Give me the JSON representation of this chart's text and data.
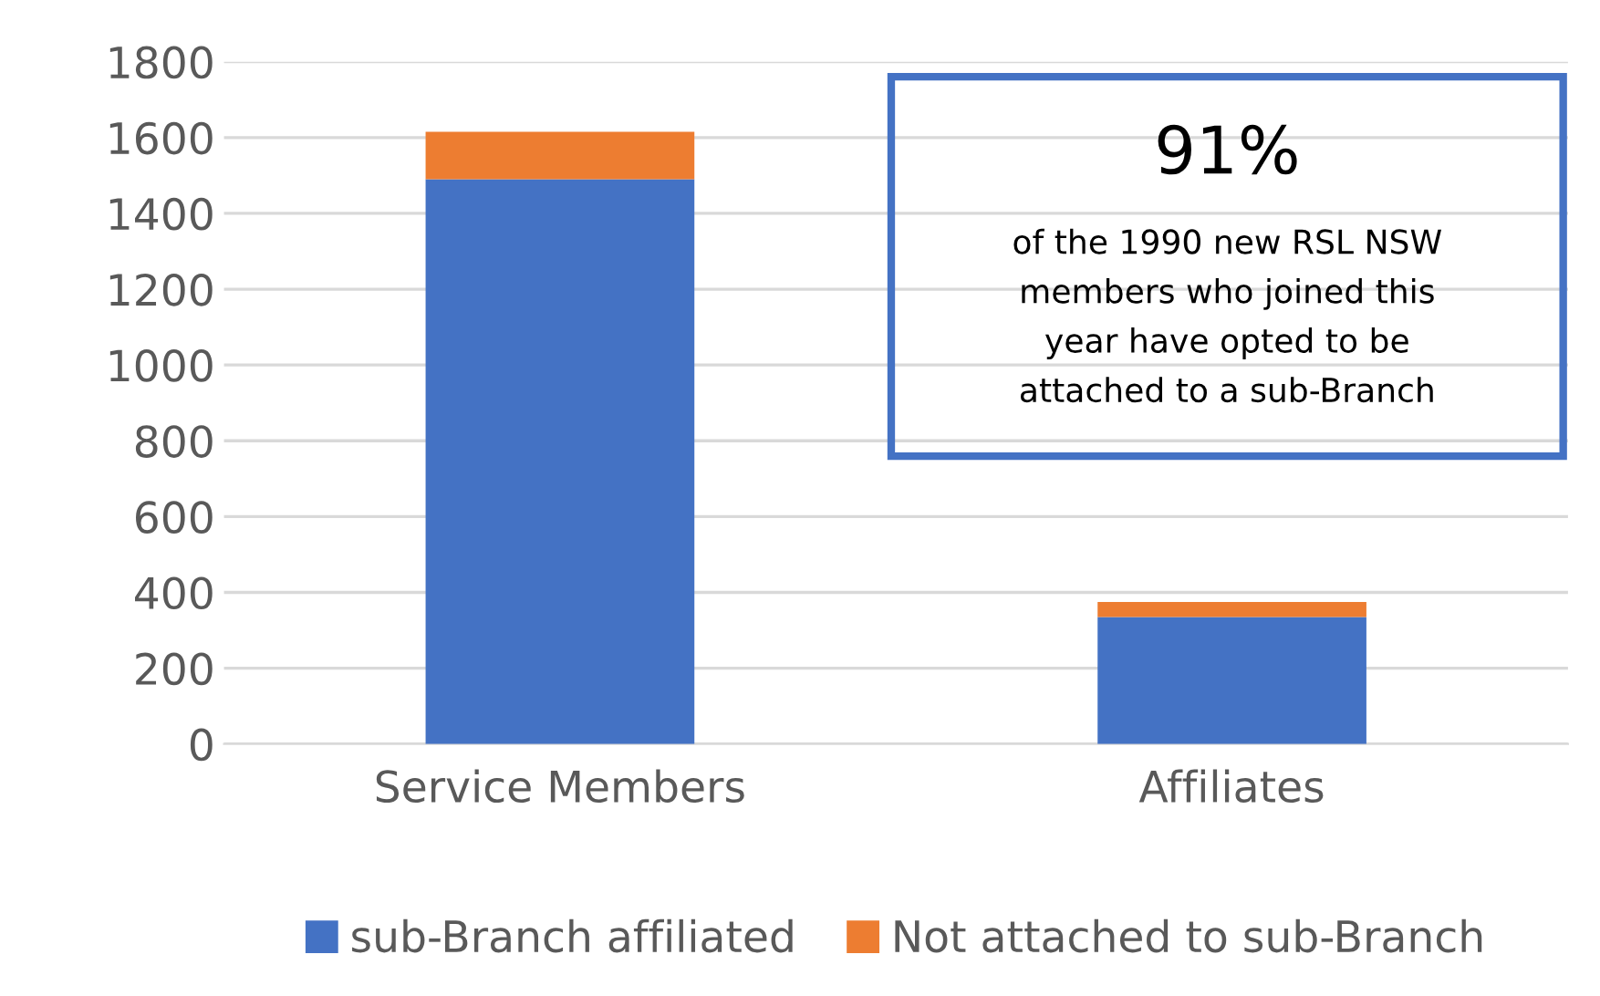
{
  "chart_data": {
    "type": "bar",
    "stacked": true,
    "categories": [
      "Service Members",
      "Affiliates"
    ],
    "series": [
      {
        "name": "sub-Branch affiliated",
        "color": "#4472c4",
        "values": [
          1490,
          335
        ]
      },
      {
        "name": "Not attached to sub-Branch",
        "color": "#ed7d31",
        "values": [
          125,
          40
        ]
      }
    ],
    "ylim": [
      0,
      1800
    ],
    "yticks": [
      0,
      200,
      400,
      600,
      800,
      1000,
      1200,
      1400,
      1600,
      1800
    ],
    "grid": "y",
    "legend": "bottom",
    "annotations": [
      "91%",
      "of the 1990 new RSL NSW members who joined this year have opted to be attached to a sub-Branch"
    ]
  }
}
